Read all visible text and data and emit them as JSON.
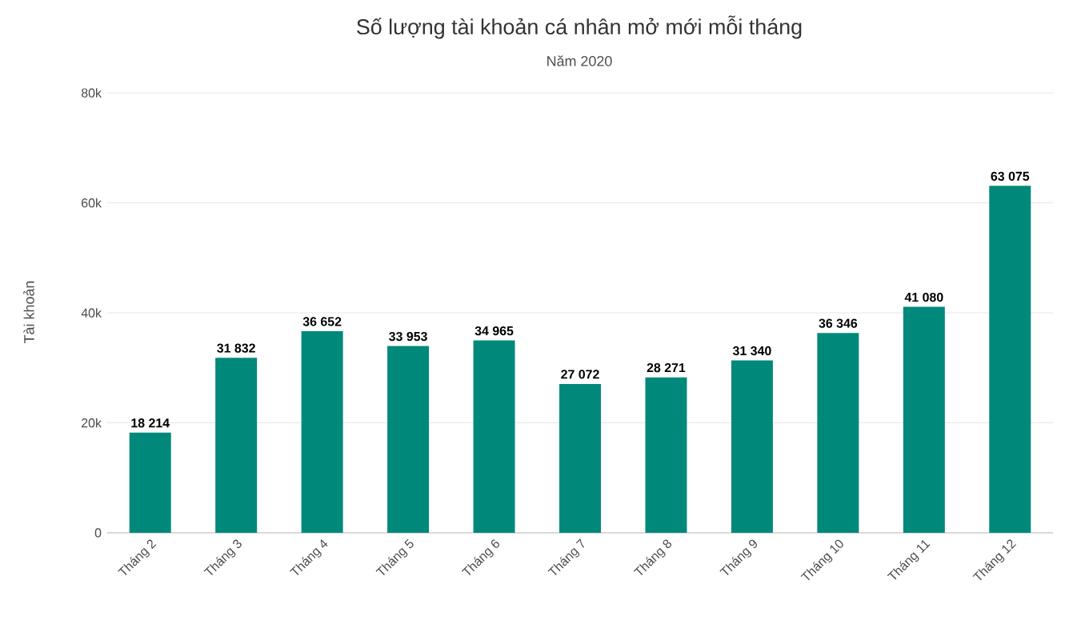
{
  "chart_data": {
    "type": "bar",
    "title": "Số lượng tài khoản cá nhân mở mới mỗi tháng",
    "subtitle": "Năm 2020",
    "ylabel": "Tài khoản",
    "categories": [
      "Tháng 2",
      "Tháng 3",
      "Tháng 4",
      "Tháng 5",
      "Tháng 6",
      "Tháng 7",
      "Tháng 8",
      "Tháng 9",
      "Tháng 10",
      "Tháng 11",
      "Tháng 12"
    ],
    "values": [
      18214,
      31832,
      36652,
      33953,
      34965,
      27072,
      28271,
      31340,
      36346,
      41080,
      63075
    ],
    "value_labels": [
      "18 214",
      "31 832",
      "36 652",
      "33 953",
      "34 965",
      "27 072",
      "28 271",
      "31 340",
      "36 346",
      "41 080",
      "63 075"
    ],
    "color": "#00897b",
    "ylim": [
      0,
      80000
    ],
    "yticks": [
      0,
      {
        "value": 20000,
        "label": "20k"
      },
      {
        "value": 40000,
        "label": "40k"
      },
      {
        "value": 60000,
        "label": "60k"
      },
      {
        "value": 80000,
        "label": "80k"
      }
    ],
    "grid": "y"
  }
}
